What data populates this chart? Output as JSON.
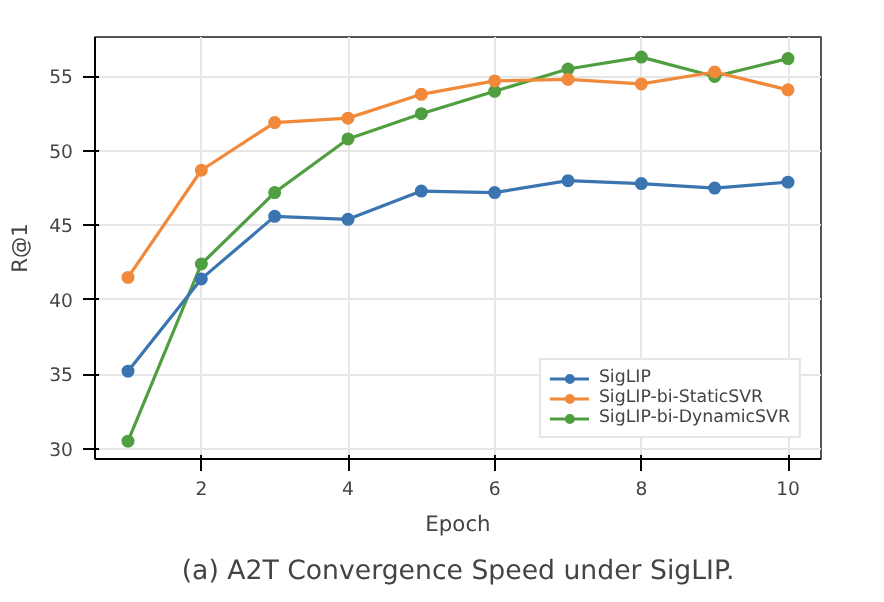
{
  "chart_data": {
    "type": "line",
    "title": "(a) A2T Convergence Speed under SigLIP.",
    "xlabel": "Epoch",
    "ylabel": "R@1",
    "x": [
      1,
      2,
      3,
      4,
      5,
      6,
      7,
      8,
      9,
      10
    ],
    "series": [
      {
        "name": "SigLIP",
        "color": "#3a75b0",
        "values": [
          35.2,
          41.4,
          45.6,
          45.4,
          47.3,
          47.2,
          48.0,
          47.8,
          47.5,
          47.9
        ]
      },
      {
        "name": "SigLIP-bi-StaticSVR",
        "color": "#f08a3a",
        "values": [
          41.5,
          48.7,
          51.9,
          52.2,
          53.8,
          54.7,
          54.8,
          54.5,
          55.3,
          54.1
        ]
      },
      {
        "name": "SigLIP-bi-DynamicSVR",
        "color": "#4f9e3f",
        "values": [
          30.5,
          42.4,
          47.2,
          50.8,
          52.5,
          54.0,
          55.5,
          56.3,
          55.0,
          56.2
        ]
      }
    ],
    "xlim": [
      0.55,
      10.45
    ],
    "ylim": [
      29.3,
      57.65
    ],
    "xticks": [
      2,
      4,
      6,
      8,
      10
    ],
    "yticks": [
      30,
      35,
      40,
      45,
      50,
      55
    ],
    "grid": true,
    "legend": "bottom right",
    "marker": "circle",
    "line_style": "solid"
  }
}
